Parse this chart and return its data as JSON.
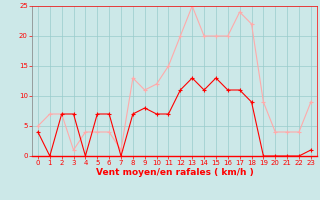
{
  "hours": [
    0,
    1,
    2,
    3,
    4,
    5,
    6,
    7,
    8,
    9,
    10,
    11,
    12,
    13,
    14,
    15,
    16,
    17,
    18,
    19,
    20,
    21,
    22,
    23
  ],
  "wind_avg": [
    4,
    0,
    7,
    7,
    0,
    7,
    7,
    0,
    7,
    8,
    7,
    7,
    11,
    13,
    11,
    13,
    11,
    11,
    9,
    0,
    0,
    0,
    0,
    1
  ],
  "wind_gust": [
    5,
    7,
    7,
    1,
    4,
    4,
    4,
    1,
    13,
    11,
    12,
    15,
    20,
    25,
    20,
    20,
    20,
    24,
    22,
    9,
    4,
    4,
    4,
    9
  ],
  "avg_color": "#ff0000",
  "gust_color": "#ffaaaa",
  "bg_color": "#cce8e8",
  "grid_color": "#99cccc",
  "xlabel": "Vent moyen/en rafales ( km/h )",
  "ylim": [
    0,
    25
  ],
  "yticks": [
    0,
    5,
    10,
    15,
    20,
    25
  ],
  "xlim": [
    -0.5,
    23.5
  ],
  "xticks": [
    0,
    1,
    2,
    3,
    4,
    5,
    6,
    7,
    8,
    9,
    10,
    11,
    12,
    13,
    14,
    15,
    16,
    17,
    18,
    19,
    20,
    21,
    22,
    23
  ],
  "tick_color": "#ff0000",
  "tick_fontsize": 5,
  "xlabel_fontsize": 6.5,
  "label_color": "#ff0000",
  "spine_color": "#ff0000",
  "left_spine_color": "#808080"
}
